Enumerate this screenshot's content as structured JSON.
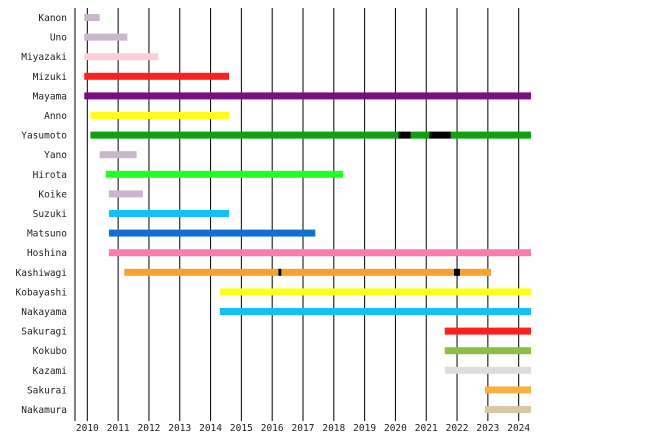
{
  "chart_data": {
    "type": "timeline",
    "title": "",
    "xlabel": "",
    "ylabel": "",
    "xlim": [
      2009.6,
      2024.4
    ],
    "x_ticks": [
      "2010",
      "2011",
      "2012",
      "2013",
      "2014",
      "2015",
      "2016",
      "2017",
      "2018",
      "2019",
      "2020",
      "2021",
      "2022",
      "2023",
      "2024"
    ],
    "grid": "vertical",
    "rows": [
      {
        "name": "Kanon",
        "bars": [
          {
            "start": 2009.9,
            "end": 2010.4,
            "color": "#c9b5cc"
          }
        ]
      },
      {
        "name": "Uno",
        "bars": [
          {
            "start": 2009.9,
            "end": 2011.3,
            "color": "#c9b5cc"
          }
        ]
      },
      {
        "name": "Miyazaki",
        "bars": [
          {
            "start": 2009.9,
            "end": 2012.3,
            "color": "#ffcdd8"
          }
        ]
      },
      {
        "name": "Mizuki",
        "bars": [
          {
            "start": 2009.9,
            "end": 2014.6,
            "color": "#ff1f1f"
          }
        ]
      },
      {
        "name": "Mayama",
        "bars": [
          {
            "start": 2009.9,
            "end": 2024.4,
            "color": "#7a1080"
          }
        ]
      },
      {
        "name": "Anno",
        "bars": [
          {
            "start": 2010.1,
            "end": 2014.6,
            "color": "#ffff1a"
          }
        ]
      },
      {
        "name": "Yasumoto",
        "bars": [
          {
            "start": 2010.1,
            "end": 2020.1,
            "color": "#10a010"
          },
          {
            "start": 2020.1,
            "end": 2020.5,
            "color": "#000000"
          },
          {
            "start": 2020.5,
            "end": 2021.1,
            "color": "#10a010"
          },
          {
            "start": 2021.1,
            "end": 2021.8,
            "color": "#000000"
          },
          {
            "start": 2021.8,
            "end": 2024.4,
            "color": "#10a010"
          }
        ]
      },
      {
        "name": "Yano",
        "bars": [
          {
            "start": 2010.4,
            "end": 2011.6,
            "color": "#c9b5cc"
          }
        ]
      },
      {
        "name": "Hirota",
        "bars": [
          {
            "start": 2010.6,
            "end": 2018.3,
            "color": "#22ff22"
          }
        ]
      },
      {
        "name": "Koike",
        "bars": [
          {
            "start": 2010.7,
            "end": 2011.8,
            "color": "#c9b5cc"
          }
        ]
      },
      {
        "name": "Suzuki",
        "bars": [
          {
            "start": 2010.7,
            "end": 2014.6,
            "color": "#14c0f5"
          }
        ]
      },
      {
        "name": "Matsuno",
        "bars": [
          {
            "start": 2010.7,
            "end": 2017.4,
            "color": "#1070d0"
          }
        ]
      },
      {
        "name": "Hoshina",
        "bars": [
          {
            "start": 2010.7,
            "end": 2024.4,
            "color": "#ff7aaf"
          }
        ]
      },
      {
        "name": "Kashiwagi",
        "bars": [
          {
            "start": 2011.2,
            "end": 2016.2,
            "color": "#f8a030"
          },
          {
            "start": 2016.2,
            "end": 2016.3,
            "color": "#000000"
          },
          {
            "start": 2016.3,
            "end": 2021.9,
            "color": "#f8a030"
          },
          {
            "start": 2021.9,
            "end": 2022.1,
            "color": "#000000"
          },
          {
            "start": 2022.1,
            "end": 2023.1,
            "color": "#f8a030"
          }
        ]
      },
      {
        "name": "Kobayashi",
        "bars": [
          {
            "start": 2014.3,
            "end": 2024.4,
            "color": "#ffff1a"
          }
        ]
      },
      {
        "name": "Nakayama",
        "bars": [
          {
            "start": 2014.3,
            "end": 2024.4,
            "color": "#14c0f5"
          }
        ]
      },
      {
        "name": "Sakuragi",
        "bars": [
          {
            "start": 2021.6,
            "end": 2024.4,
            "color": "#ff1f1f"
          }
        ]
      },
      {
        "name": "Kokubo",
        "bars": [
          {
            "start": 2021.6,
            "end": 2024.4,
            "color": "#8cc040"
          }
        ]
      },
      {
        "name": "Kazami",
        "bars": [
          {
            "start": 2021.6,
            "end": 2024.4,
            "color": "#dddddd"
          }
        ]
      },
      {
        "name": "Sakurai",
        "bars": [
          {
            "start": 2022.9,
            "end": 2024.4,
            "color": "#f8b040"
          }
        ]
      },
      {
        "name": "Nakamura",
        "bars": [
          {
            "start": 2022.9,
            "end": 2024.4,
            "color": "#d8c8a8"
          }
        ]
      }
    ]
  }
}
